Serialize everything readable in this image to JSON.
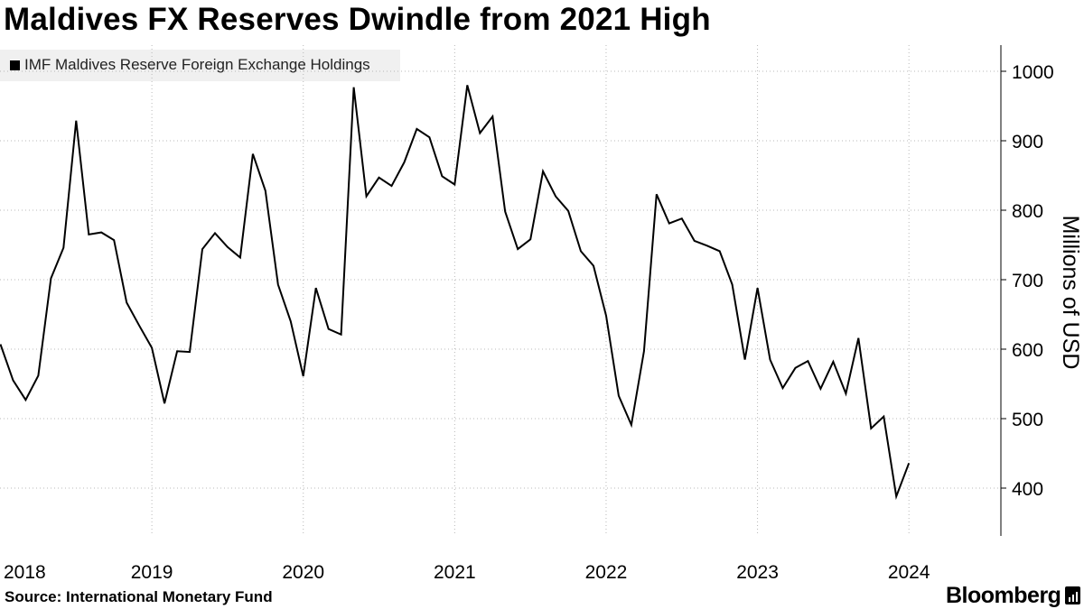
{
  "chart_data": {
    "type": "line",
    "title": "Maldives FX Reserves Dwindle from 2021 High",
    "legend": [
      "IMF Maldives Reserve Foreign Exchange Holdings"
    ],
    "legend_position": "top-left",
    "ylabel": "Millions of USD",
    "y_axis_side": "right",
    "ylim": [
      330,
      1040
    ],
    "y_ticks": [
      400,
      500,
      600,
      700,
      800,
      900,
      1000
    ],
    "x_ticks": [
      "2018",
      "2019",
      "2020",
      "2021",
      "2022",
      "2023",
      "2024"
    ],
    "x_range_months": [
      0,
      78
    ],
    "x_tick_months": [
      0,
      12,
      24,
      36,
      48,
      60,
      72
    ],
    "x_gridlines": "vertical at each year start",
    "series": [
      {
        "name": "IMF Maldives Reserve Foreign Exchange Holdings",
        "color": "#000000",
        "values": [
          607,
          555,
          527,
          562,
          702,
          746,
          929,
          765,
          768,
          757,
          667,
          634,
          602,
          522,
          597,
          596,
          744,
          767,
          747,
          732,
          881,
          828,
          693,
          640,
          561,
          688,
          629,
          621,
          977,
          820,
          847,
          835,
          869,
          917,
          905,
          849,
          837,
          980,
          911,
          935,
          798,
          744,
          758,
          856,
          820,
          799,
          741,
          720,
          648,
          533,
          491,
          597,
          823,
          781,
          788,
          756,
          749,
          741,
          693,
          585,
          688,
          585,
          544,
          573,
          583,
          543,
          582,
          536,
          616,
          486,
          503,
          388,
          436
        ]
      }
    ]
  },
  "legend": {
    "label": "IMF Maldives Reserve Foreign Exchange Holdings"
  },
  "footer": {
    "source": "Source: International Monetary Fund",
    "brand": "Bloomberg"
  }
}
